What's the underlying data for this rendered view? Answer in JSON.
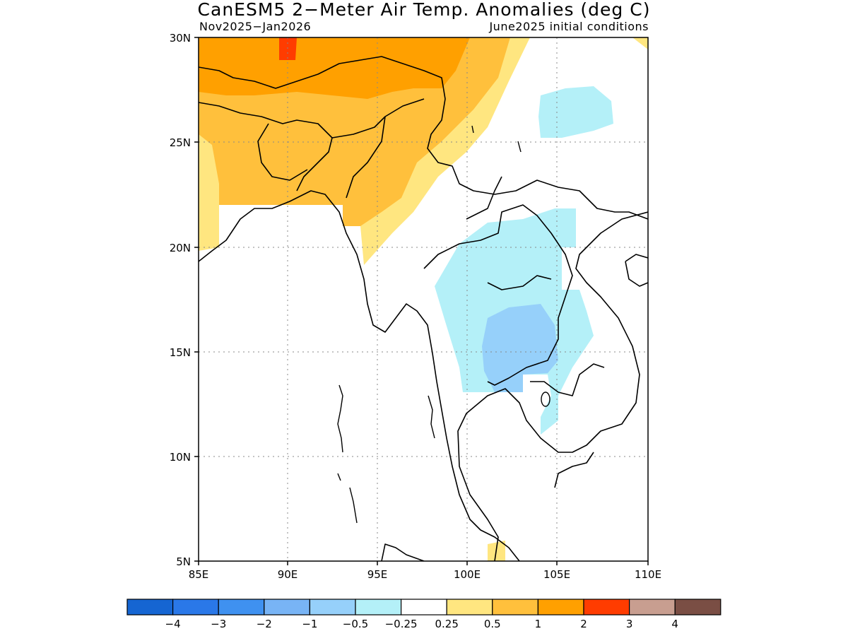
{
  "title": "CanESM5 2−Meter Air Temp. Anomalies (deg C)",
  "subtitle_left": "Nov2025−Jan2026",
  "subtitle_right": "June2025 initial conditions",
  "axes": {
    "x_ticks": [
      "85E",
      "90E",
      "95E",
      "100E",
      "105E",
      "110E"
    ],
    "y_ticks": [
      "30N",
      "25N",
      "20N",
      "15N",
      "10N",
      "5N"
    ],
    "lon_range": [
      85,
      110
    ],
    "lat_range": [
      5,
      30
    ],
    "grid": "dotted"
  },
  "colorbar": {
    "labels": [
      "−4",
      "−3",
      "−2",
      "−1",
      "−0.5",
      "−0.25",
      "0.25",
      "0.5",
      "1",
      "2",
      "3",
      "4"
    ],
    "colors": [
      "#1565d2",
      "#2a78e8",
      "#3f91f0",
      "#78b4f5",
      "#96d0fa",
      "#b4f0f8",
      "#ffffff",
      "#ffe680",
      "#ffc03c",
      "#ffa000",
      "#ff3c00",
      "#c89e90",
      "#7a4e44"
    ]
  },
  "chart_data": {
    "type": "heatmap",
    "title": "CanESM5 2−Meter Air Temp. Anomalies (deg C)",
    "period": "Nov2025−Jan2026",
    "initial_conditions": "June2025 initial conditions",
    "x_range": [
      85,
      110
    ],
    "y_range": [
      5,
      30
    ],
    "color_levels": [
      -4,
      -3,
      -2,
      -1,
      -0.5,
      -0.25,
      0.25,
      0.5,
      1,
      2,
      3,
      4
    ],
    "regions": [
      {
        "name": "northwest Tibet/Himalaya",
        "anomaly_range": [
          1,
          2
        ]
      },
      {
        "name": "Bangladesh / northeast India / Myanmar north",
        "anomaly_range": [
          0.5,
          1
        ]
      },
      {
        "name": "small spot near 29.5N 89.5E",
        "anomaly_range": [
          2,
          3
        ]
      },
      {
        "name": "southern China band",
        "anomaly_range": [
          0.25,
          0.5
        ]
      },
      {
        "name": "Thailand / Laos",
        "anomaly_range": [
          -0.5,
          -0.25
        ]
      },
      {
        "name": "central Thailand",
        "anomaly_range": [
          -1,
          -0.5
        ]
      },
      {
        "name": "southern China near 26N 105E",
        "anomaly_range": [
          -0.5,
          -0.25
        ]
      },
      {
        "name": "Malay peninsula near 5N 101E",
        "anomaly_range": [
          0.25,
          0.5
        ]
      }
    ]
  }
}
